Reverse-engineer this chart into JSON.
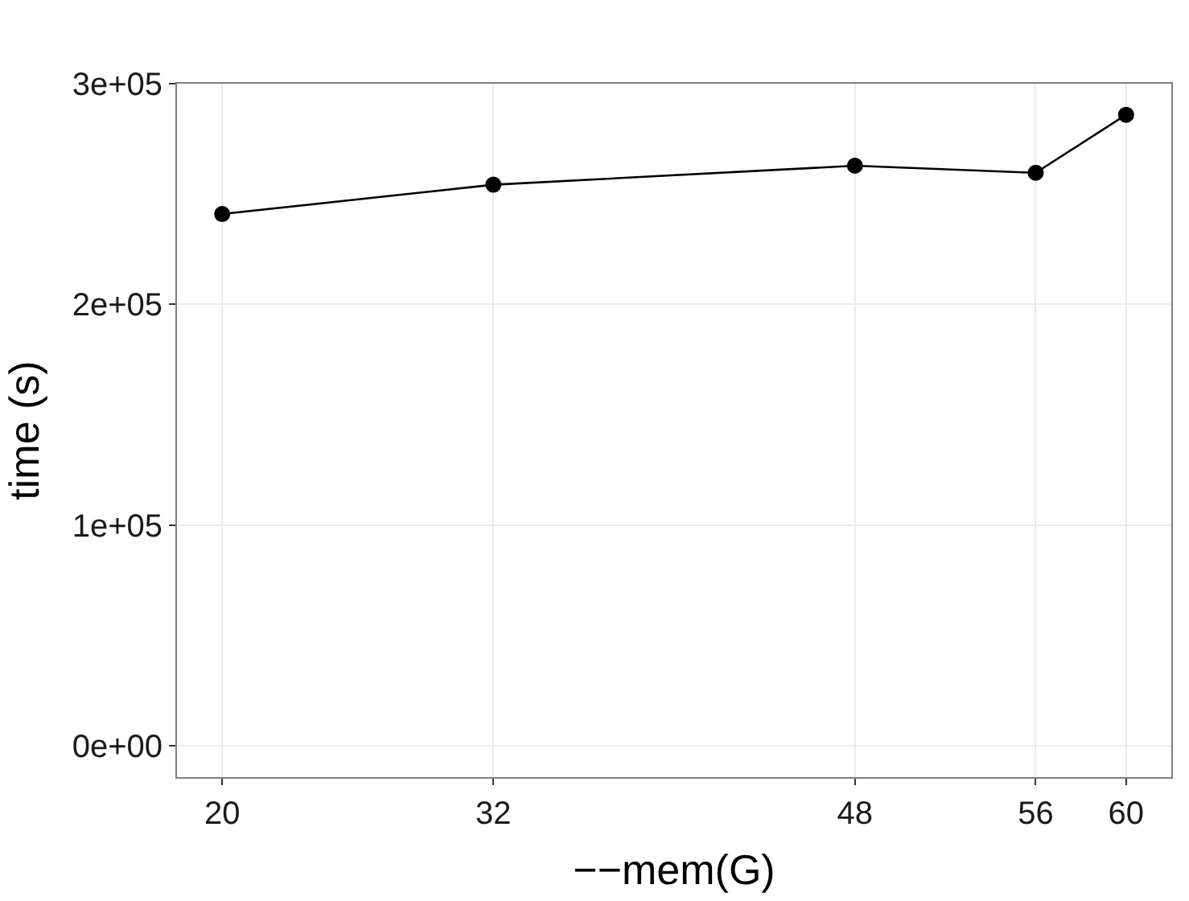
{
  "chart_data": {
    "type": "line",
    "xlabel": "−−mem(G)",
    "ylabel": "time (s)",
    "x": [
      20,
      32,
      48,
      56,
      60
    ],
    "series": [
      {
        "color": "#000000",
        "values": [
          240900,
          254200,
          262800,
          259600,
          285900
        ]
      }
    ],
    "xlim": [
      18,
      62
    ],
    "xticks": [
      20,
      32,
      48,
      56,
      60
    ],
    "ylim": [
      -14300,
      300000
    ],
    "yticks": [
      {
        "value": 0,
        "label": "0e+00"
      },
      {
        "value": 100000,
        "label": "1e+05"
      },
      {
        "value": 200000,
        "label": "2e+05"
      },
      {
        "value": 300000,
        "label": "3e+05"
      }
    ],
    "grid": true,
    "marker": "circle",
    "line_style": "solid"
  }
}
